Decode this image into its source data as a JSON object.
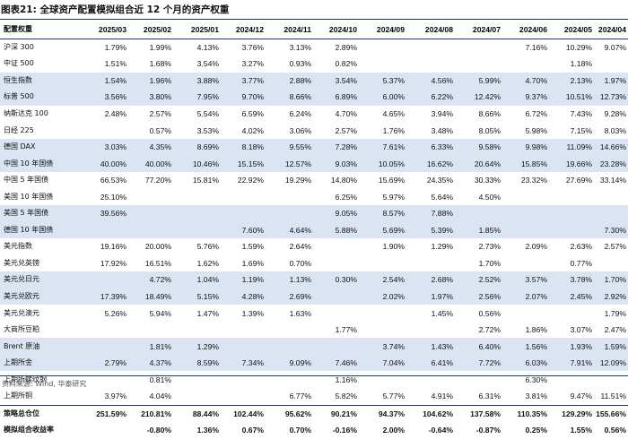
{
  "title": "图表21:  全球资产配置模拟组合近 12 个月的资产权重",
  "source": "资料来源: Wind, 华泰研究",
  "header_label": "配置权重",
  "columns": [
    "2025/03",
    "2025/02",
    "2025/01",
    "2024/12",
    "2024/11",
    "2024/10",
    "2024/09",
    "2024/08",
    "2024/07",
    "2024/06",
    "2024/05",
    "2024/04"
  ],
  "rows": [
    {
      "label": "沪深 300",
      "blue": false,
      "cells": [
        "1.79%",
        "1.99%",
        "4.13%",
        "3.76%",
        "3.13%",
        "2.89%",
        "",
        "",
        "",
        "7.16%",
        "10.29%",
        "9.07%"
      ]
    },
    {
      "label": "中证 500",
      "blue": false,
      "cells": [
        "1.51%",
        "1.68%",
        "3.54%",
        "3.27%",
        "0.93%",
        "0.82%",
        "",
        "",
        "",
        "",
        "1.18%",
        ""
      ]
    },
    {
      "label": "恒生指数",
      "blue": true,
      "cells": [
        "1.54%",
        "1.96%",
        "3.88%",
        "3.77%",
        "2.88%",
        "3.54%",
        "5.37%",
        "4.56%",
        "5.99%",
        "4.70%",
        "2.13%",
        "1.97%"
      ]
    },
    {
      "label": "标普 500",
      "blue": true,
      "cells": [
        "3.56%",
        "3.80%",
        "7.95%",
        "9.70%",
        "8.66%",
        "6.89%",
        "6.00%",
        "6.22%",
        "12.42%",
        "9.37%",
        "10.51%",
        "12.73%"
      ]
    },
    {
      "label": "纳斯达克 100",
      "blue": false,
      "cells": [
        "2.48%",
        "2.57%",
        "5.54%",
        "6.59%",
        "6.24%",
        "4.70%",
        "4.65%",
        "3.94%",
        "8.66%",
        "6.72%",
        "7.43%",
        "9.28%"
      ]
    },
    {
      "label": "日经 225",
      "blue": false,
      "cells": [
        "",
        "0.57%",
        "3.53%",
        "4.02%",
        "3.06%",
        "2.57%",
        "1.76%",
        "3.48%",
        "8.05%",
        "5.98%",
        "7.15%",
        "8.03%"
      ]
    },
    {
      "label": "德国 DAX",
      "blue": true,
      "cells": [
        "3.03%",
        "4.35%",
        "8.69%",
        "8.18%",
        "9.55%",
        "7.28%",
        "7.61%",
        "6.33%",
        "9.58%",
        "9.98%",
        "11.09%",
        "14.66%"
      ]
    },
    {
      "label": "中国 10 年国债",
      "blue": true,
      "cells": [
        "40.00%",
        "40.00%",
        "10.46%",
        "15.15%",
        "12.57%",
        "9.03%",
        "10.05%",
        "16.62%",
        "20.64%",
        "15.85%",
        "19.66%",
        "23.28%"
      ]
    },
    {
      "label": "中国 5 年国债",
      "blue": false,
      "cells": [
        "66.53%",
        "77.20%",
        "15.81%",
        "22.92%",
        "19.29%",
        "14.80%",
        "15.69%",
        "24.35%",
        "30.33%",
        "23.32%",
        "27.69%",
        "33.14%"
      ]
    },
    {
      "label": "美国 10 年国债",
      "blue": false,
      "cells": [
        "25.10%",
        "",
        "",
        "",
        "",
        "6.25%",
        "5.97%",
        "5.64%",
        "4.50%",
        "",
        "",
        ""
      ]
    },
    {
      "label": "美国 5 年国债",
      "blue": true,
      "cells": [
        "39.56%",
        "",
        "",
        "",
        "",
        "9.05%",
        "8.57%",
        "7.88%",
        "",
        "",
        "",
        ""
      ]
    },
    {
      "label": "德国 10 年国债",
      "blue": true,
      "cells": [
        "",
        "",
        "",
        "7.60%",
        "4.64%",
        "5.88%",
        "5.69%",
        "5.39%",
        "1.85%",
        "",
        "",
        "7.30%"
      ]
    },
    {
      "label": "美元指数",
      "blue": false,
      "cells": [
        "19.16%",
        "20.00%",
        "5.76%",
        "1.59%",
        "2.64%",
        "",
        "1.90%",
        "1.29%",
        "2.73%",
        "2.09%",
        "2.63%",
        "2.57%"
      ]
    },
    {
      "label": "美元兑英镑",
      "blue": false,
      "cells": [
        "17.92%",
        "16.51%",
        "1.62%",
        "1.69%",
        "0.70%",
        "",
        "",
        "",
        "1.70%",
        "",
        "0.77%",
        ""
      ]
    },
    {
      "label": "美元兑日元",
      "blue": true,
      "cells": [
        "",
        "4.72%",
        "1.04%",
        "1.19%",
        "1.13%",
        "0.30%",
        "2.54%",
        "2.68%",
        "2.52%",
        "3.57%",
        "3.78%",
        "1.70%"
      ]
    },
    {
      "label": "美元兑欧元",
      "blue": true,
      "cells": [
        "17.39%",
        "18.49%",
        "5.15%",
        "4.28%",
        "2.69%",
        "",
        "2.02%",
        "1.97%",
        "2.56%",
        "2.07%",
        "2.45%",
        "2.92%"
      ]
    },
    {
      "label": "美元兑澳元",
      "blue": false,
      "cells": [
        "5.26%",
        "5.94%",
        "1.47%",
        "1.39%",
        "1.63%",
        "",
        "",
        "1.45%",
        "0.56%",
        "",
        "",
        "1.79%"
      ]
    },
    {
      "label": "大商所豆粕",
      "blue": false,
      "cells": [
        "",
        "",
        "",
        "",
        "",
        "1.77%",
        "",
        "",
        "2.72%",
        "1.86%",
        "3.07%",
        "2.47%"
      ]
    },
    {
      "label": "Brent 原油",
      "blue": true,
      "cells": [
        "",
        "1.81%",
        "1.29%",
        "",
        "",
        "",
        "3.74%",
        "1.43%",
        "6.40%",
        "1.56%",
        "1.93%",
        "1.59%"
      ]
    },
    {
      "label": "上期所金",
      "blue": true,
      "cells": [
        "2.79%",
        "4.37%",
        "8.59%",
        "7.34%",
        "9.09%",
        "7.46%",
        "7.04%",
        "6.41%",
        "7.72%",
        "6.03%",
        "7.91%",
        "12.09%"
      ]
    },
    {
      "label": "上期所螺纹钢",
      "blue": false,
      "cells": [
        "",
        "0.81%",
        "",
        "",
        "",
        "1.16%",
        "",
        "",
        "",
        "6.30%",
        "",
        ""
      ]
    },
    {
      "label": "上期所铜",
      "blue": false,
      "cells": [
        "3.97%",
        "4.04%",
        "",
        "",
        "6.77%",
        "5.82%",
        "5.77%",
        "4.91%",
        "6.31%",
        "3.81%",
        "9.47%",
        "11.51%"
      ]
    }
  ],
  "summary_rows": [
    {
      "label": "策略总仓位",
      "cells": [
        "251.59%",
        "210.81%",
        "88.44%",
        "102.44%",
        "95.62%",
        "90.21%",
        "94.37%",
        "104.62%",
        "137.58%",
        "110.35%",
        "129.29%",
        "155.66%"
      ]
    },
    {
      "label": "模拟组合收益率",
      "cells": [
        "",
        "-0.80%",
        "1.36%",
        "0.67%",
        "0.70%",
        "-0.16%",
        "2.00%",
        "-0.64%",
        "-0.87%",
        "0.25%",
        "1.55%",
        "0.56%"
      ]
    }
  ]
}
